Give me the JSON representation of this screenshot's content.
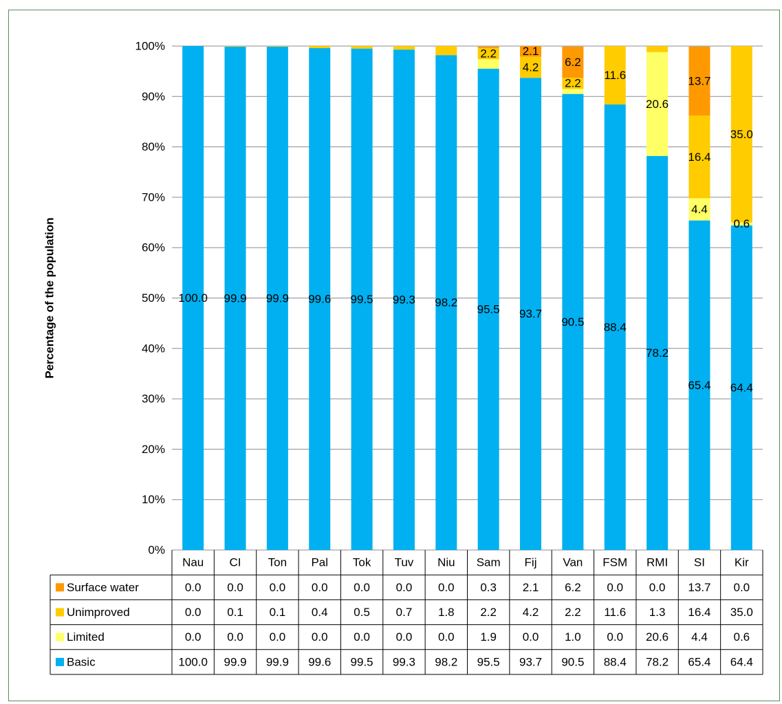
{
  "chart_data": {
    "type": "bar",
    "stacked": true,
    "title": "",
    "xlabel": "",
    "ylabel": "Percentage of the population",
    "ylim": [
      0,
      100
    ],
    "yticks": [
      "0%",
      "10%",
      "20%",
      "30%",
      "40%",
      "50%",
      "60%",
      "70%",
      "80%",
      "90%",
      "100%"
    ],
    "grid": true,
    "legend_placement": "data table rows below chart",
    "categories": [
      "Nau",
      "CI",
      "Ton",
      "Pal",
      "Tok",
      "Tuv",
      "Niu",
      "Sam",
      "Fij",
      "Van",
      "FSM",
      "RMI",
      "SI",
      "Kir"
    ],
    "series": [
      {
        "name": "Basic",
        "color": "#00B0F0",
        "values": [
          100.0,
          99.9,
          99.9,
          99.6,
          99.5,
          99.3,
          98.2,
          95.5,
          93.7,
          90.5,
          88.4,
          78.2,
          65.4,
          64.4
        ]
      },
      {
        "name": "Limited",
        "color": "#FFFF66",
        "values": [
          0.0,
          0.0,
          0.0,
          0.0,
          0.0,
          0.0,
          0.0,
          1.9,
          0.0,
          1.0,
          0.0,
          20.6,
          4.4,
          0.6
        ]
      },
      {
        "name": "Unimproved",
        "color": "#FFCC00",
        "values": [
          0.0,
          0.1,
          0.1,
          0.4,
          0.5,
          0.7,
          1.8,
          2.2,
          4.2,
          2.2,
          11.6,
          1.3,
          16.4,
          35.0
        ]
      },
      {
        "name": "Surface water",
        "color": "#FF9900",
        "values": [
          0.0,
          0.0,
          0.0,
          0.0,
          0.0,
          0.0,
          0.0,
          0.3,
          2.1,
          6.2,
          0.0,
          0.0,
          13.7,
          0.0
        ]
      }
    ],
    "table_row_order": [
      "Surface water",
      "Unimproved",
      "Limited",
      "Basic"
    ],
    "data_labels": [
      {
        "series": "Basic",
        "category": "Nau",
        "text": "100.0"
      },
      {
        "series": "Basic",
        "category": "CI",
        "text": "99.9"
      },
      {
        "series": "Basic",
        "category": "Ton",
        "text": "99.9"
      },
      {
        "series": "Basic",
        "category": "Pal",
        "text": "99.6"
      },
      {
        "series": "Basic",
        "category": "Tok",
        "text": "99.5"
      },
      {
        "series": "Basic",
        "category": "Tuv",
        "text": "99.3"
      },
      {
        "series": "Basic",
        "category": "Niu",
        "text": "98.2"
      },
      {
        "series": "Basic",
        "category": "Sam",
        "text": "95.5"
      },
      {
        "series": "Basic",
        "category": "Fij",
        "text": "93.7"
      },
      {
        "series": "Basic",
        "category": "Van",
        "text": "90.5"
      },
      {
        "series": "Basic",
        "category": "FSM",
        "text": "88.4"
      },
      {
        "series": "Basic",
        "category": "RMI",
        "text": "78.2"
      },
      {
        "series": "Basic",
        "category": "SI",
        "text": "65.4"
      },
      {
        "series": "Basic",
        "category": "Kir",
        "text": "64.4"
      },
      {
        "series": "Unimproved",
        "category": "Sam",
        "text": "2.2"
      },
      {
        "series": "Unimproved",
        "category": "Fij",
        "text": "4.2"
      },
      {
        "series": "Surface water",
        "category": "Fij",
        "text": "2.1"
      },
      {
        "series": "Unimproved",
        "category": "Van",
        "text": "2.2"
      },
      {
        "series": "Surface water",
        "category": "Van",
        "text": "6.2"
      },
      {
        "series": "Unimproved",
        "category": "FSM",
        "text": "11.6"
      },
      {
        "series": "Limited",
        "category": "RMI",
        "text": "20.6"
      },
      {
        "series": "Limited",
        "category": "SI",
        "text": "4.4"
      },
      {
        "series": "Unimproved",
        "category": "SI",
        "text": "16.4"
      },
      {
        "series": "Surface water",
        "category": "SI",
        "text": "13.7"
      },
      {
        "series": "Limited",
        "category": "Kir",
        "text": "0.6"
      },
      {
        "series": "Unimproved",
        "category": "Kir",
        "text": "35.0"
      }
    ]
  }
}
